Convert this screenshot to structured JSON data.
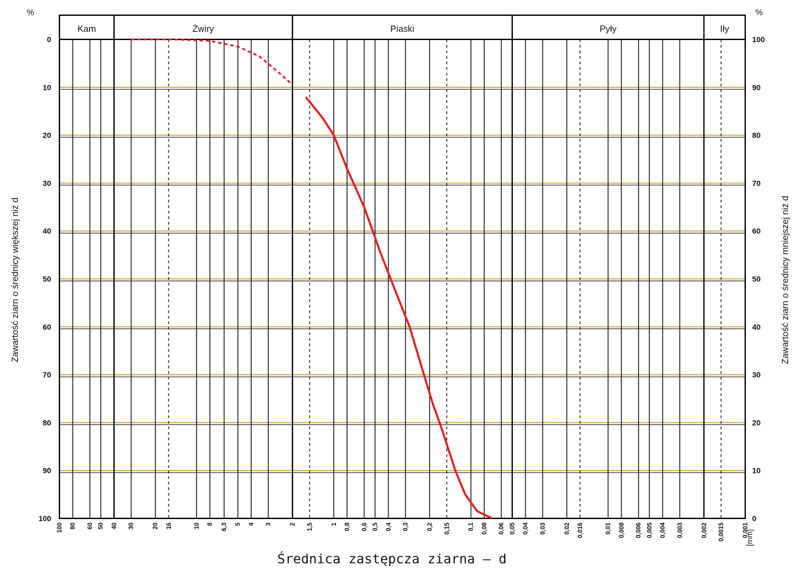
{
  "chart_data": {
    "type": "line",
    "title": "",
    "xlabel": "Średnica zastępcza ziarna – d",
    "x_unit": "[mm]",
    "x_scale": "log",
    "x_reversed": true,
    "xlim": [
      0.001,
      100
    ],
    "ylabel_left": "Zawartość ziarn o średnicy większej niż d",
    "ylabel_right": "Zawartość ziarn o średnicy mniejszej niż d",
    "ylabel_unit": "%",
    "ylim_left": [
      0,
      100
    ],
    "ylim_right": [
      100,
      0
    ],
    "grid": true,
    "y_ticks_left": [
      "0",
      "10",
      "20",
      "30",
      "40",
      "50",
      "60",
      "70",
      "80",
      "90",
      "100"
    ],
    "y_ticks_right": [
      "100",
      "90",
      "80",
      "70",
      "60",
      "50",
      "40",
      "30",
      "20",
      "10",
      "0"
    ],
    "x_tick_labels": [
      {
        "d": 100,
        "label": "100"
      },
      {
        "d": 80,
        "label": "80"
      },
      {
        "d": 60,
        "label": "60"
      },
      {
        "d": 50,
        "label": "50"
      },
      {
        "d": 40,
        "label": "40"
      },
      {
        "d": 30,
        "label": "30"
      },
      {
        "d": 20,
        "label": "20"
      },
      {
        "d": 16,
        "label": "16"
      },
      {
        "d": 10,
        "label": "10"
      },
      {
        "d": 8,
        "label": "8"
      },
      {
        "d": 6.3,
        "label": "6,3"
      },
      {
        "d": 5,
        "label": "5"
      },
      {
        "d": 4,
        "label": "4"
      },
      {
        "d": 3,
        "label": "3"
      },
      {
        "d": 2,
        "label": "2"
      },
      {
        "d": 1.5,
        "label": "1,5"
      },
      {
        "d": 1,
        "label": "1"
      },
      {
        "d": 0.8,
        "label": "0,8"
      },
      {
        "d": 0.6,
        "label": "0,6"
      },
      {
        "d": 0.5,
        "label": "0,5"
      },
      {
        "d": 0.4,
        "label": "0,4"
      },
      {
        "d": 0.3,
        "label": "0,3"
      },
      {
        "d": 0.2,
        "label": "0,2"
      },
      {
        "d": 0.15,
        "label": "0,15"
      },
      {
        "d": 0.1,
        "label": "0,1"
      },
      {
        "d": 0.08,
        "label": "0,08"
      },
      {
        "d": 0.06,
        "label": "0,06"
      },
      {
        "d": 0.05,
        "label": "0,05"
      },
      {
        "d": 0.04,
        "label": "0,04"
      },
      {
        "d": 0.03,
        "label": "0,03"
      },
      {
        "d": 0.02,
        "label": "0,02"
      },
      {
        "d": 0.016,
        "label": "0,016"
      },
      {
        "d": 0.01,
        "label": "0,01"
      },
      {
        "d": 0.008,
        "label": "0,008"
      },
      {
        "d": 0.006,
        "label": "0,006"
      },
      {
        "d": 0.005,
        "label": "0,005"
      },
      {
        "d": 0.004,
        "label": "0,004"
      },
      {
        "d": 0.003,
        "label": "0,003"
      },
      {
        "d": 0.002,
        "label": "0,002"
      },
      {
        "d": 0.0015,
        "label": "0,0015"
      },
      {
        "d": 0.001,
        "label": "0,001"
      }
    ],
    "fractions": [
      {
        "name": "Kam",
        "from": 100,
        "to": 40
      },
      {
        "name": "Żwiry",
        "from": 40,
        "to": 2
      },
      {
        "name": "Piaski",
        "from": 2,
        "to": 0.05
      },
      {
        "name": "Pyły",
        "from": 0.05,
        "to": 0.002
      },
      {
        "name": "Iły",
        "from": 0.002,
        "to": 0.001
      }
    ],
    "dashed_lines_d": [
      16,
      1.5,
      0.15,
      0.016,
      0.0015
    ],
    "series": [
      {
        "color": "#e02020",
        "dashed_until_y": 10,
        "points": [
          {
            "d": 30,
            "y": 0
          },
          {
            "d": 15,
            "y": 0
          },
          {
            "d": 8,
            "y": 0.3
          },
          {
            "d": 5,
            "y": 1.5
          },
          {
            "d": 3.5,
            "y": 3.5
          },
          {
            "d": 2.5,
            "y": 7
          },
          {
            "d": 2.0,
            "y": 9.5
          },
          {
            "d": 1.6,
            "y": 12
          },
          {
            "d": 1.2,
            "y": 16.5
          },
          {
            "d": 1.0,
            "y": 20
          },
          {
            "d": 0.8,
            "y": 27
          },
          {
            "d": 0.6,
            "y": 35
          },
          {
            "d": 0.45,
            "y": 45
          },
          {
            "d": 0.35,
            "y": 53
          },
          {
            "d": 0.28,
            "y": 60
          },
          {
            "d": 0.22,
            "y": 70
          },
          {
            "d": 0.19,
            "y": 76
          },
          {
            "d": 0.16,
            "y": 82
          },
          {
            "d": 0.13,
            "y": 90
          },
          {
            "d": 0.11,
            "y": 95
          },
          {
            "d": 0.09,
            "y": 98.5
          },
          {
            "d": 0.07,
            "y": 100
          }
        ]
      }
    ]
  },
  "colors": {
    "hgrid": "#c9a227",
    "curve": "#e02020",
    "ink": "#111111"
  }
}
